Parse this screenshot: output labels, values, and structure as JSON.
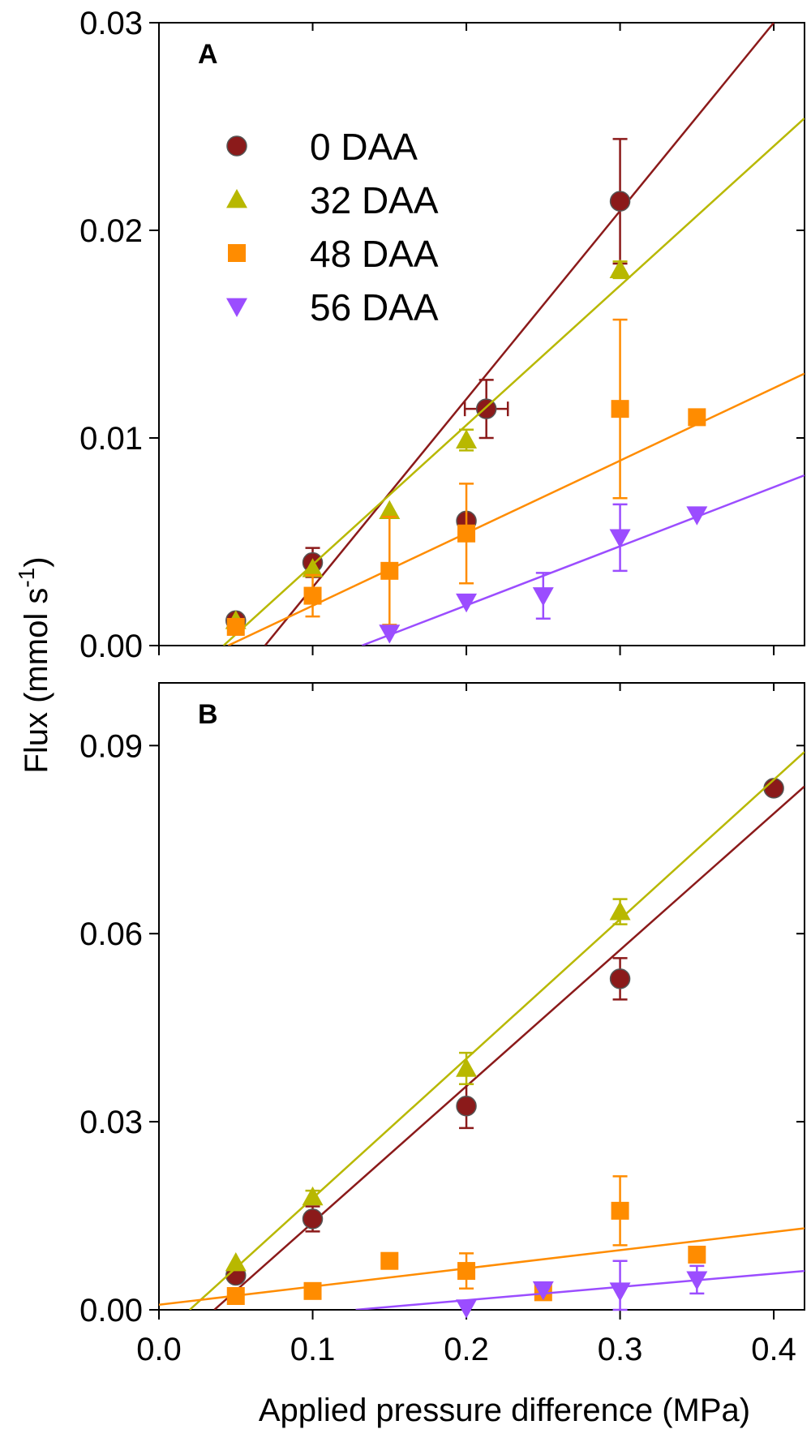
{
  "chart_data": {
    "type": "scatter",
    "xlabel": "Applied pressure difference (MPa)",
    "ylabel": "Flux (mmol s",
    "ylabel_sup": "-1",
    "ylabel_end": ")",
    "xlim": [
      0,
      0.42
    ],
    "xticks": [
      0.0,
      0.1,
      0.2,
      0.3,
      0.4
    ],
    "xtick_labels": [
      "0.0",
      "0.1",
      "0.2",
      "0.3",
      "0.4"
    ],
    "colors": {
      "0 DAA": "#8b1a1a",
      "32 DAA": "#b8b800",
      "48 DAA": "#ff8c00",
      "56 DAA": "#9b4dff"
    },
    "legend": [
      {
        "label": "0 DAA",
        "marker": "circle"
      },
      {
        "label": "32 DAA",
        "marker": "triangle-up"
      },
      {
        "label": "48 DAA",
        "marker": "square"
      },
      {
        "label": "56 DAA",
        "marker": "triangle-down"
      }
    ],
    "panels": [
      {
        "label": "A",
        "ylim": [
          0,
          0.03
        ],
        "yticks": [
          0.0,
          0.01,
          0.02,
          0.03
        ],
        "ytick_labels": [
          "0.00",
          "0.01",
          "0.02",
          "0.03"
        ],
        "series": [
          {
            "name": "0 DAA",
            "marker": "circle",
            "points": [
              {
                "x": 0.05,
                "y": 0.0012,
                "yerr": 0
              },
              {
                "x": 0.1,
                "y": 0.004,
                "yerr": 0.0007
              },
              {
                "x": 0.2,
                "y": 0.006,
                "yerr": 0
              },
              {
                "x": 0.213,
                "y": 0.0114,
                "yerr": 0.0014,
                "xerr": 0.014
              },
              {
                "x": 0.3,
                "y": 0.0214,
                "yerr": 0.003
              }
            ],
            "fit": {
              "x0": 0.069,
              "x1": 0.4,
              "y0": 0.0,
              "y1": 0.03
            }
          },
          {
            "name": "32 DAA",
            "marker": "triangle-up",
            "points": [
              {
                "x": 0.05,
                "y": 0.0012,
                "yerr": 0
              },
              {
                "x": 0.1,
                "y": 0.0037,
                "yerr": 0
              },
              {
                "x": 0.15,
                "y": 0.0065,
                "yerr": 0
              },
              {
                "x": 0.2,
                "y": 0.0099,
                "yerr": 0.0005
              },
              {
                "x": 0.3,
                "y": 0.0181,
                "yerr": 0.0004
              }
            ],
            "fit": {
              "x0": 0.042,
              "x1": 0.42,
              "y0": 0.0,
              "y1": 0.0254
            }
          },
          {
            "name": "48 DAA",
            "marker": "square",
            "points": [
              {
                "x": 0.05,
                "y": 0.0009,
                "yerr": 0
              },
              {
                "x": 0.1,
                "y": 0.0024,
                "yerr": 0.001
              },
              {
                "x": 0.15,
                "y": 0.0036,
                "yerr": 0.0026
              },
              {
                "x": 0.2,
                "y": 0.0054,
                "yerr": 0.0024
              },
              {
                "x": 0.3,
                "y": 0.0114,
                "yerr": 0.0043
              },
              {
                "x": 0.35,
                "y": 0.011,
                "yerr": 0
              }
            ],
            "fit": {
              "x0": 0.045,
              "x1": 0.42,
              "y0": 0.0,
              "y1": 0.0131
            }
          },
          {
            "name": "56 DAA",
            "marker": "triangle-down",
            "points": [
              {
                "x": 0.15,
                "y": 0.0006,
                "yerr": 0
              },
              {
                "x": 0.2,
                "y": 0.0021,
                "yerr": 0
              },
              {
                "x": 0.25,
                "y": 0.0024,
                "yerr": 0.0011
              },
              {
                "x": 0.3,
                "y": 0.0052,
                "yerr": 0.0016
              },
              {
                "x": 0.35,
                "y": 0.0063,
                "yerr": 0
              }
            ],
            "fit": {
              "x0": 0.132,
              "x1": 0.42,
              "y0": 0.0,
              "y1": 0.0082
            }
          }
        ]
      },
      {
        "label": "B",
        "ylim": [
          0,
          0.1
        ],
        "yticks": [
          0.0,
          0.03,
          0.06,
          0.09
        ],
        "ytick_labels": [
          "0.00",
          "0.03",
          "0.06",
          "0.09"
        ],
        "series": [
          {
            "name": "0 DAA",
            "marker": "circle",
            "points": [
              {
                "x": 0.05,
                "y": 0.0055,
                "yerr": 0
              },
              {
                "x": 0.1,
                "y": 0.0145,
                "yerr": 0.002
              },
              {
                "x": 0.2,
                "y": 0.0325,
                "yerr": 0.0035
              },
              {
                "x": 0.3,
                "y": 0.0528,
                "yerr": 0.0033
              },
              {
                "x": 0.4,
                "y": 0.0832,
                "yerr": 0
              }
            ],
            "fit": {
              "x0": 0.036,
              "x1": 0.42,
              "y0": 0.0,
              "y1": 0.0835
            }
          },
          {
            "name": "32 DAA",
            "marker": "triangle-up",
            "points": [
              {
                "x": 0.05,
                "y": 0.0075,
                "yerr": 0
              },
              {
                "x": 0.1,
                "y": 0.018,
                "yerr": 0.001
              },
              {
                "x": 0.2,
                "y": 0.0385,
                "yerr": 0.0025
              },
              {
                "x": 0.3,
                "y": 0.0635,
                "yerr": 0.002
              }
            ],
            "fit": {
              "x0": 0.02,
              "x1": 0.42,
              "y0": 0.0,
              "y1": 0.089
            }
          },
          {
            "name": "48 DAA",
            "marker": "square",
            "points": [
              {
                "x": 0.05,
                "y": 0.0022,
                "yerr": 0
              },
              {
                "x": 0.1,
                "y": 0.003,
                "yerr": 0
              },
              {
                "x": 0.15,
                "y": 0.0078,
                "yerr": 0
              },
              {
                "x": 0.2,
                "y": 0.0062,
                "yerr": 0.0028
              },
              {
                "x": 0.25,
                "y": 0.0028,
                "yerr": 0
              },
              {
                "x": 0.3,
                "y": 0.0158,
                "yerr": 0.0055
              },
              {
                "x": 0.35,
                "y": 0.0088,
                "yerr": 0
              }
            ],
            "fit": {
              "x0": 0.0,
              "x1": 0.42,
              "y0": 0.0008,
              "y1": 0.013
            }
          },
          {
            "name": "56 DAA",
            "marker": "triangle-down",
            "points": [
              {
                "x": 0.2,
                "y": 0.0003,
                "yerr": 0
              },
              {
                "x": 0.25,
                "y": 0.0032,
                "yerr": 0
              },
              {
                "x": 0.3,
                "y": 0.003,
                "yerr": 0.0048
              },
              {
                "x": 0.35,
                "y": 0.0048,
                "yerr": 0.0022
              }
            ],
            "fit": {
              "x0": 0.128,
              "x1": 0.42,
              "y0": 0.0,
              "y1": 0.0062
            }
          }
        ]
      }
    ]
  }
}
